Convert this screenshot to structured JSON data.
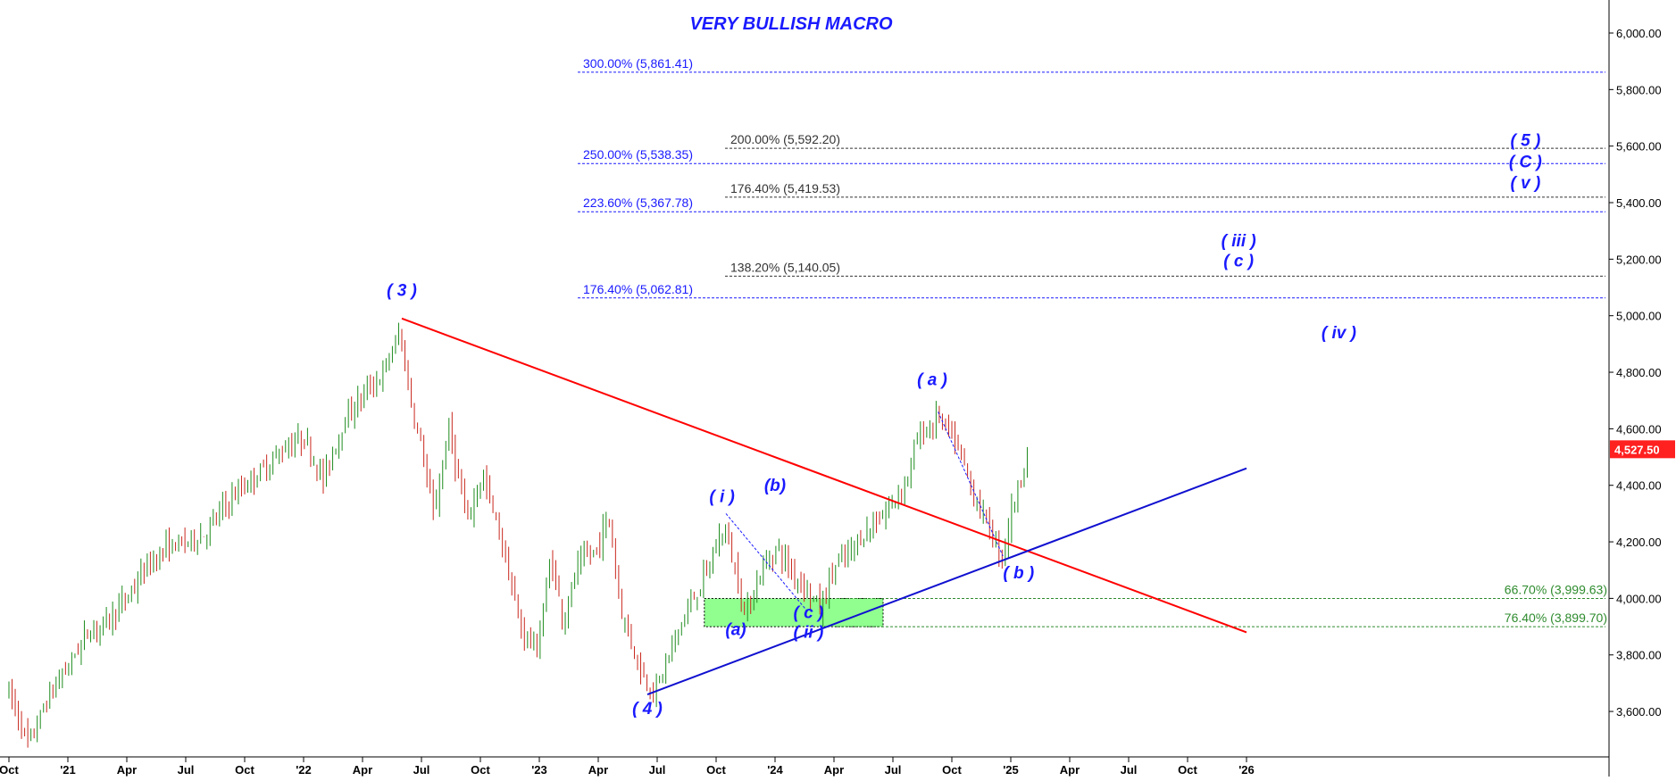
{
  "chart_data": {
    "type": "candlestick",
    "title": "VERY BULLISH MACRO",
    "colors": {
      "title": "#1a1aff",
      "up_candle": "#1e8c1e",
      "down_candle": "#c8281e",
      "resistance_line": "#ff0000",
      "support_line": "#1010d0",
      "fib_blue": "#1a1aff",
      "fib_black": "#333333",
      "fib_green": "#2e8b2e",
      "zone_fill": "#90ff90",
      "price_badge": "#ff2020"
    },
    "x_axis": {
      "ticks": [
        "Oct",
        "'21",
        "Apr",
        "Jul",
        "Oct",
        "'22",
        "Apr",
        "Jul",
        "Oct",
        "'23",
        "Apr",
        "Jul",
        "Oct",
        "'24",
        "Apr",
        "Jul",
        "Oct",
        "'25",
        "Apr",
        "Jul",
        "Oct",
        "'26"
      ],
      "range_months": [
        0,
        63
      ]
    },
    "y_axis": {
      "ticks": [
        "6,000.00",
        "5,800.00",
        "5,600.00",
        "5,400.00",
        "5,200.00",
        "5,000.00",
        "4,800.00",
        "4,600.00",
        "4,400.00",
        "4,200.00",
        "4,000.00",
        "3,800.00",
        "3,600.00"
      ],
      "tick_values": [
        6000,
        5800,
        5600,
        5400,
        5200,
        5000,
        4800,
        4600,
        4400,
        4200,
        4000,
        3800,
        3600
      ],
      "range": [
        3470,
        6110
      ],
      "side": "right"
    },
    "last_price_label": "4,527.50",
    "last_price": 4527.5,
    "price_path": [
      [
        0.0,
        3670
      ],
      [
        1.0,
        3480
      ],
      [
        2.0,
        3650
      ],
      [
        3.0,
        3760
      ],
      [
        4.0,
        3880
      ],
      [
        5.0,
        3920
      ],
      [
        6.0,
        4000
      ],
      [
        7.0,
        4110
      ],
      [
        8.0,
        4180
      ],
      [
        9.0,
        4200
      ],
      [
        10.0,
        4230
      ],
      [
        11.0,
        4330
      ],
      [
        12.0,
        4400
      ],
      [
        13.0,
        4460
      ],
      [
        14.0,
        4530
      ],
      [
        15.0,
        4570
      ],
      [
        16.0,
        4420
      ],
      [
        17.0,
        4620
      ],
      [
        18.0,
        4720
      ],
      [
        19.0,
        4790
      ],
      [
        19.9,
        4940
      ],
      [
        20.5,
        4680
      ],
      [
        21.0,
        4540
      ],
      [
        21.6,
        4290
      ],
      [
        22.4,
        4600
      ],
      [
        23.3,
        4270
      ],
      [
        24.1,
        4440
      ],
      [
        25.2,
        4170
      ],
      [
        26.0,
        3900
      ],
      [
        26.9,
        3820
      ],
      [
        27.6,
        4150
      ],
      [
        28.2,
        3920
      ],
      [
        29.0,
        4120
      ],
      [
        30.0,
        4180
      ],
      [
        30.5,
        4300
      ],
      [
        31.2,
        3950
      ],
      [
        31.8,
        3820
      ],
      [
        32.3,
        3720
      ],
      [
        32.9,
        3670
      ],
      [
        33.4,
        3760
      ],
      [
        34.2,
        3910
      ],
      [
        35.0,
        4020
      ],
      [
        35.7,
        4120
      ],
      [
        36.4,
        4260
      ],
      [
        37.0,
        4090
      ],
      [
        37.5,
        3940
      ],
      [
        38.3,
        4100
      ],
      [
        39.1,
        4180
      ],
      [
        39.9,
        4090
      ],
      [
        40.7,
        4030
      ],
      [
        41.3,
        3960
      ],
      [
        42.0,
        4110
      ],
      [
        42.8,
        4160
      ],
      [
        43.5,
        4230
      ],
      [
        44.3,
        4280
      ],
      [
        45.0,
        4340
      ],
      [
        45.7,
        4420
      ],
      [
        46.3,
        4580
      ],
      [
        46.9,
        4600
      ],
      [
        47.3,
        4650
      ],
      [
        47.8,
        4590
      ],
      [
        48.5,
        4500
      ],
      [
        49.0,
        4380
      ],
      [
        49.8,
        4270
      ],
      [
        50.3,
        4180
      ],
      [
        50.6,
        4150
      ],
      [
        51.0,
        4300
      ],
      [
        51.5,
        4430
      ],
      [
        51.9,
        4520
      ]
    ],
    "trendlines": [
      {
        "name": "resistance",
        "from": [
          20.0,
          4990
        ],
        "to": [
          63.0,
          3880
        ]
      },
      {
        "name": "support",
        "from": [
          32.5,
          3660
        ],
        "to": [
          63.0,
          4460
        ]
      }
    ],
    "fib_levels_left": [
      {
        "label": "300.00% (5,861.41)",
        "value": 5861.41
      },
      {
        "label": "250.00% (5,538.35)",
        "value": 5538.35
      },
      {
        "label": "223.60% (5,367.78)",
        "value": 5367.78
      },
      {
        "label": "176.40% (5,062.81)",
        "value": 5062.81
      }
    ],
    "fib_levels_right": [
      {
        "label": "200.00% (5,592.20)",
        "value": 5592.2
      },
      {
        "label": "176.40% (5,419.53)",
        "value": 5419.53
      },
      {
        "label": "138.20% (5,140.05)",
        "value": 5140.05
      }
    ],
    "fib_levels_support": [
      {
        "label": "66.70% (3,999.63)",
        "value": 3999.63
      },
      {
        "label": "76.40% (3,899.70)",
        "value": 3899.7
      }
    ],
    "support_zone": {
      "x_from": 35.4,
      "x_to": 44.5,
      "y_from": 3899.7,
      "y_to": 3999.63
    },
    "wave_labels": [
      {
        "text": "( 3 )",
        "x": 20.0,
        "y": 5070
      },
      {
        "text": "( 4 )",
        "x": 32.5,
        "y": 3590
      },
      {
        "text": "( i )",
        "x": 36.3,
        "y": 4340
      },
      {
        "text": "(b)",
        "x": 39.0,
        "y": 4380
      },
      {
        "text": "(a)",
        "x": 37.0,
        "y": 3870
      },
      {
        "text": "( c )",
        "x": 40.7,
        "y": 3930
      },
      {
        "text": "( ii )",
        "x": 40.7,
        "y": 3860
      },
      {
        "text": "( a )",
        "x": 47.0,
        "y": 4755
      },
      {
        "text": "( b )",
        "x": 51.4,
        "y": 4070
      },
      {
        "text": "( iii )",
        "x": 62.6,
        "y": 5245
      },
      {
        "text": "( c )",
        "x": 62.6,
        "y": 5175
      },
      {
        "text": "( iv )",
        "x": 67.7,
        "y": 4920
      },
      {
        "text": "( 5 )",
        "x": 77.2,
        "y": 5600
      },
      {
        "text": "( C )",
        "x": 77.2,
        "y": 5525
      },
      {
        "text": "( v )",
        "x": 77.2,
        "y": 5450
      }
    ]
  }
}
